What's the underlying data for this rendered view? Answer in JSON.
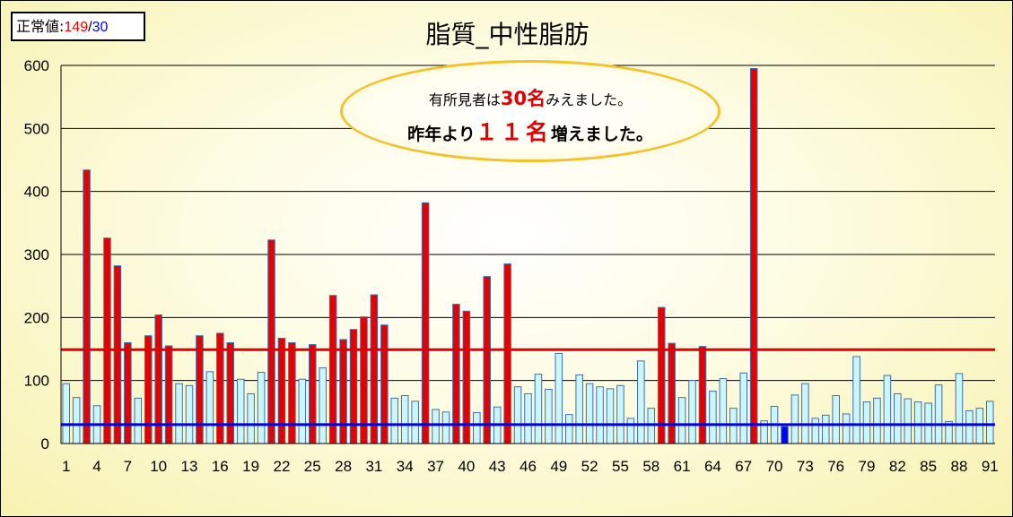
{
  "norm_label": {
    "prefix": "正常値:",
    "high": "149",
    "separator": "/",
    "low": "30"
  },
  "callout": {
    "line1_a": "有所見者は",
    "line1_em": "30名",
    "line1_b": "みえました。",
    "line2_a": "昨年より",
    "line2_em": "１１名",
    "line2_b": "増えました。"
  },
  "colors": {
    "abnormal_bar": "#e60000",
    "normal_bar": "#ccf6ff",
    "low_bar": "#0000ff",
    "bar_border": "#3b6fb0",
    "upper_line": "#e00000",
    "lower_line": "#0000e0"
  },
  "chart_data": {
    "type": "bar",
    "title": "脂質_中性脂肪",
    "xlabel": "",
    "ylabel": "",
    "ylim": [
      0,
      600
    ],
    "y_ticks": [
      "0",
      "100",
      "200",
      "300",
      "400",
      "500",
      "600"
    ],
    "grid": "horizontal",
    "x_tick_labels": [
      "1",
      "4",
      "7",
      "10",
      "13",
      "16",
      "19",
      "22",
      "25",
      "28",
      "31",
      "34",
      "37",
      "40",
      "43",
      "46",
      "49",
      "52",
      "55",
      "58",
      "61",
      "64",
      "67",
      "70",
      "73",
      "76",
      "79",
      "82",
      "85",
      "88",
      "91"
    ],
    "x": [
      1,
      2,
      3,
      4,
      5,
      6,
      7,
      8,
      9,
      10,
      11,
      12,
      13,
      14,
      15,
      16,
      17,
      18,
      19,
      20,
      21,
      22,
      23,
      24,
      25,
      26,
      27,
      28,
      29,
      30,
      31,
      32,
      33,
      34,
      35,
      36,
      37,
      38,
      39,
      40,
      41,
      42,
      43,
      44,
      45,
      46,
      47,
      48,
      49,
      50,
      51,
      52,
      53,
      54,
      55,
      56,
      57,
      58,
      59,
      60,
      61,
      62,
      63,
      64,
      65,
      66,
      67,
      68,
      69,
      70,
      71,
      72,
      73,
      74,
      75,
      76,
      77,
      78,
      79,
      80,
      81,
      82,
      83,
      84,
      85,
      86,
      87,
      88,
      89,
      90,
      91
    ],
    "values": [
      95,
      73,
      434,
      60,
      326,
      282,
      160,
      72,
      171,
      204,
      155,
      95,
      92,
      171,
      114,
      175,
      160,
      102,
      79,
      113,
      323,
      167,
      160,
      102,
      157,
      120,
      235,
      165,
      181,
      201,
      236,
      188,
      72,
      76,
      67,
      382,
      54,
      50,
      221,
      210,
      49,
      265,
      58,
      285,
      90,
      79,
      110,
      86,
      143,
      46,
      109,
      95,
      90,
      87,
      92,
      40,
      131,
      56,
      216,
      159,
      73,
      100,
      154,
      83,
      103,
      56,
      112,
      595,
      36,
      59,
      27,
      77,
      95,
      40,
      45,
      76,
      47,
      138,
      66,
      72,
      108,
      79,
      71,
      66,
      64,
      93,
      35,
      111,
      52,
      56,
      67
    ],
    "reference_lines": [
      {
        "name": "upper",
        "value": 149
      },
      {
        "name": "lower",
        "value": 30
      }
    ]
  }
}
